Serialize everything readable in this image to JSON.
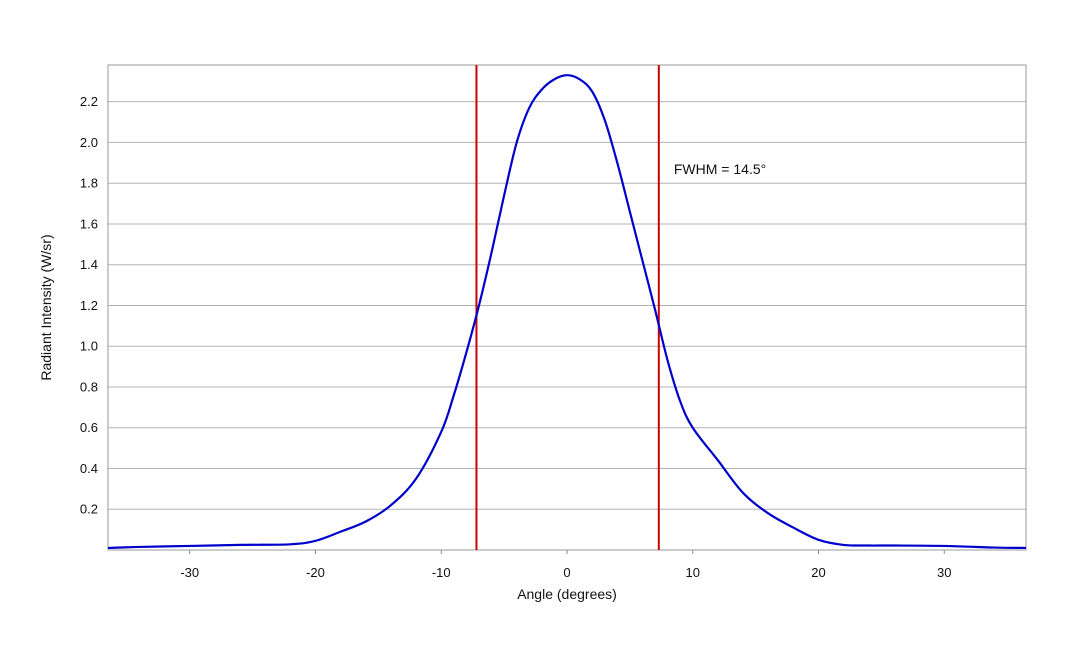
{
  "chart_data": {
    "type": "line",
    "title": "",
    "xlabel": "Angle (degrees)",
    "ylabel": "Radiant Intensity (W/sr)",
    "xlim": [
      -36.5,
      36.5
    ],
    "ylim": [
      0,
      2.38
    ],
    "xticks": [
      -30,
      -20,
      -10,
      0,
      10,
      20,
      30
    ],
    "xtick_labels": [
      "-30",
      "-20",
      "-10",
      "0",
      "10",
      "20",
      "30"
    ],
    "yticks": [
      0.2,
      0.4,
      0.6,
      0.8,
      1.0,
      1.2,
      1.4,
      1.6,
      1.8,
      2.0,
      2.2
    ],
    "ytick_labels": [
      "0.2",
      "0.4",
      "0.6",
      "0.8",
      "1.0",
      "1.2",
      "1.4",
      "1.6",
      "1.8",
      "2.0",
      "2.2"
    ],
    "grid": true,
    "series": [
      {
        "color": "#0000cc",
        "x": [
          -36.5,
          -34,
          -30,
          -26,
          -22,
          -20,
          -18,
          -16,
          -14,
          -12,
          -10,
          -9,
          -8,
          -7,
          -6,
          -5,
          -4,
          -3,
          -2,
          -1,
          0,
          1,
          2,
          3,
          4,
          5,
          6,
          7,
          8,
          9,
          10,
          12,
          14,
          16,
          18,
          20,
          22,
          24,
          26,
          30,
          34,
          36.5
        ],
        "y": [
          0.01,
          0.015,
          0.02,
          0.025,
          0.028,
          0.045,
          0.09,
          0.14,
          0.22,
          0.35,
          0.58,
          0.76,
          0.97,
          1.2,
          1.46,
          1.74,
          2.0,
          2.17,
          2.26,
          2.31,
          2.33,
          2.31,
          2.25,
          2.11,
          1.9,
          1.66,
          1.42,
          1.18,
          0.93,
          0.73,
          0.6,
          0.44,
          0.28,
          0.18,
          0.11,
          0.05,
          0.025,
          0.022,
          0.022,
          0.02,
          0.012,
          0.01
        ]
      }
    ],
    "vlines": [
      {
        "x": -7.2,
        "color": "#cc0000"
      },
      {
        "x": 7.3,
        "color": "#cc0000"
      }
    ],
    "annotation": {
      "text": "FWHM = 14.5°",
      "x": 8.5,
      "y": 1.87
    }
  }
}
